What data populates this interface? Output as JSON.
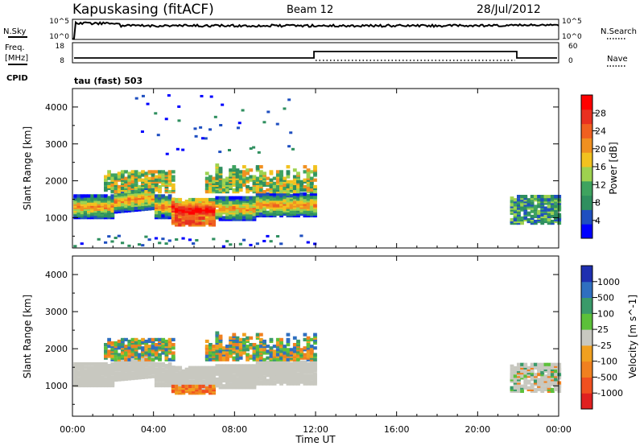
{
  "header": {
    "station": "Kapuskasing (fitACF)",
    "beam": "Beam 12",
    "date": "28/Jul/2012"
  },
  "left_labels": {
    "nsky": "N.Sky",
    "freq_line1": "Freq.",
    "freq_line2": "[MHz]",
    "cpid": "CPID"
  },
  "right_labels": {
    "nsearch": "N.Search",
    "nave": "Nave"
  },
  "strip_axes": {
    "noise_left_top": "10^5",
    "noise_left_bottom": "10^0",
    "noise_right_top": "10^5",
    "noise_right_bottom": "10^0",
    "freq_left_top": "18",
    "freq_left_bottom": "8",
    "nave_right_top": "60",
    "nave_right_bottom": "0"
  },
  "cpid_text": "tau (fast) 503",
  "colors": {
    "power_scale": [
      "#0000ff",
      "#1f4fc0",
      "#2f8f5f",
      "#3fa35f",
      "#9ed24f",
      "#f2c21f",
      "#f09020",
      "#f06020",
      "#e83020",
      "#ff0000"
    ],
    "velocity_scale": [
      "#1e2fb0",
      "#2f6fc0",
      "#3a9a6a",
      "#5cc03a",
      "#c8c8c0",
      "#f0a020",
      "#f08020",
      "#f05020",
      "#e02020"
    ]
  },
  "chart_data": [
    {
      "type": "heatmap",
      "title": "Power",
      "xlabel": "Time UT",
      "ylabel": "Slant Range [km]",
      "x_ticks": [
        "00:00",
        "04:00",
        "08:00",
        "12:00",
        "16:00",
        "20:00",
        "00:00"
      ],
      "xlim": [
        "00:00",
        "24:00"
      ],
      "y_ticks": [
        1000,
        2000,
        3000,
        4000
      ],
      "ylim": [
        180,
        4500
      ],
      "colorbar": {
        "label": "Power [dB]",
        "ticks": [
          4,
          8,
          12,
          16,
          20,
          24,
          28
        ],
        "range": [
          0,
          32
        ]
      },
      "echo_regions": [
        {
          "t_start": "00:00",
          "t_end": "12:00",
          "range_km": [
            800,
            2500
          ],
          "peak_db": 30
        },
        {
          "t_start": "21:30",
          "t_end": "24:00",
          "range_km": [
            800,
            1700
          ],
          "peak_db": 14
        }
      ]
    },
    {
      "type": "heatmap",
      "title": "Velocity",
      "xlabel": "Time UT",
      "ylabel": "Slant Range [km]",
      "x_ticks": [
        "00:00",
        "04:00",
        "08:00",
        "12:00",
        "16:00",
        "20:00",
        "00:00"
      ],
      "xlim": [
        "00:00",
        "24:00"
      ],
      "y_ticks": [
        1000,
        2000,
        3000,
        4000
      ],
      "ylim": [
        180,
        4500
      ],
      "colorbar": {
        "label": "Velocity [m s^-1]",
        "ticks": [
          1000,
          500,
          100,
          25,
          -25,
          -100,
          -500,
          -1000
        ]
      },
      "echo_regions": [
        {
          "t_start": "00:00",
          "t_end": "12:00",
          "range_km": [
            800,
            2500
          ],
          "dominant": "ground scatter (grey)"
        },
        {
          "t_start": "21:30",
          "t_end": "24:00",
          "range_km": [
            800,
            1700
          ],
          "dominant": "ground scatter (grey)"
        }
      ]
    }
  ]
}
